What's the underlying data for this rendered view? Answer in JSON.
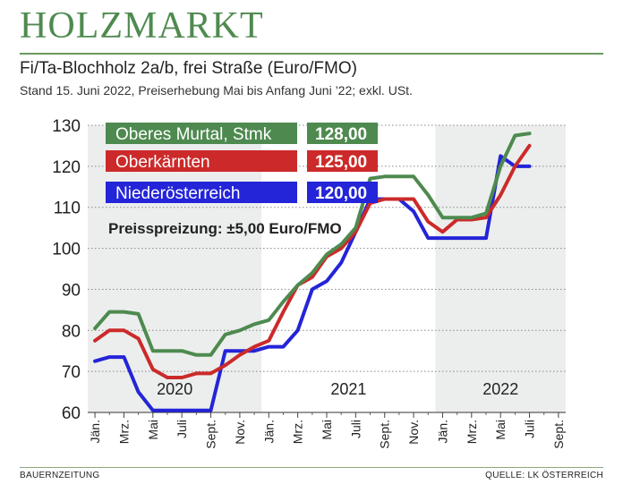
{
  "brand": "HOLZMARKT",
  "chart_data": {
    "type": "line",
    "title": "Fi/Ta-Blochholz 2a/b, frei Straße (Euro/FMO)",
    "subtitle": "Stand 15. Juni 2022, Preiserhebung Mai bis Anfang Juni ’22; exkl. USt.",
    "ylim": [
      60,
      130
    ],
    "yticks": [
      60,
      70,
      80,
      90,
      100,
      110,
      120,
      130
    ],
    "x_ticklabels": [
      "Jän.",
      "Mrz.",
      "Mai",
      "Juli",
      "Sept.",
      "Nov.",
      "Jän.",
      "Mrz.",
      "Mai",
      "Juli",
      "Sept.",
      "Nov.",
      "Jän.",
      "Mrz.",
      "Mai",
      "Juli",
      "Sept."
    ],
    "years": [
      "2020",
      "2021",
      "2022"
    ],
    "shaded_years": [
      "2020",
      "2022"
    ],
    "grid": "horizontal",
    "annotation": "Preisspreizung: ±5,00 Euro/FMO",
    "series": [
      {
        "name": "Oberes Murtal, Stmk",
        "value_label": "128,00",
        "color": "#4e8a4f",
        "points": [
          [
            0,
            80.5
          ],
          [
            1,
            84.5
          ],
          [
            2,
            84.5
          ],
          [
            3,
            84
          ],
          [
            4,
            75
          ],
          [
            5,
            75
          ],
          [
            6,
            75
          ],
          [
            7,
            74
          ],
          [
            8,
            74
          ],
          [
            9,
            79
          ],
          [
            10,
            80
          ],
          [
            11,
            81.5
          ],
          [
            12,
            82.5
          ],
          [
            13,
            87
          ],
          [
            14,
            91
          ],
          [
            15,
            94
          ],
          [
            16,
            98.5
          ],
          [
            17,
            101
          ],
          [
            18,
            105
          ],
          [
            19,
            117
          ],
          [
            20,
            117.5
          ],
          [
            21,
            117.5
          ],
          [
            22,
            117.5
          ],
          [
            23,
            113
          ],
          [
            24,
            107.5
          ],
          [
            25,
            107.5
          ],
          [
            26,
            107.5
          ],
          [
            27,
            108.5
          ],
          [
            28,
            120
          ],
          [
            29,
            127.5
          ],
          [
            30,
            128
          ]
        ]
      },
      {
        "name": "Oberkärnten",
        "value_label": "125,00",
        "color": "#cc2a2a",
        "points": [
          [
            0,
            77.5
          ],
          [
            1,
            80
          ],
          [
            2,
            80
          ],
          [
            3,
            78
          ],
          [
            4,
            70.5
          ],
          [
            5,
            68.5
          ],
          [
            6,
            68.5
          ],
          [
            7,
            69.5
          ],
          [
            8,
            69.5
          ],
          [
            9,
            71.5
          ],
          [
            10,
            74
          ],
          [
            11,
            76
          ],
          [
            12,
            77.5
          ],
          [
            13,
            84.5
          ],
          [
            14,
            91
          ],
          [
            15,
            93
          ],
          [
            16,
            98
          ],
          [
            17,
            100
          ],
          [
            18,
            104
          ],
          [
            19,
            111
          ],
          [
            20,
            112
          ],
          [
            21,
            112
          ],
          [
            22,
            112
          ],
          [
            23,
            106.5
          ],
          [
            24,
            104
          ],
          [
            25,
            107
          ],
          [
            26,
            107
          ],
          [
            27,
            107.5
          ],
          [
            28,
            113
          ],
          [
            29,
            120
          ],
          [
            30,
            125
          ]
        ]
      },
      {
        "name": "Niederösterreich",
        "value_label": "120,00",
        "color": "#2424d8",
        "points": [
          [
            0,
            72.5
          ],
          [
            1,
            73.5
          ],
          [
            2,
            73.5
          ],
          [
            3,
            65
          ],
          [
            4,
            60.5
          ],
          [
            5,
            60.5
          ],
          [
            6,
            60.5
          ],
          [
            7,
            60.5
          ],
          [
            8,
            60.5
          ],
          [
            9,
            75
          ],
          [
            10,
            75
          ],
          [
            11,
            75
          ],
          [
            12,
            76
          ],
          [
            13,
            76
          ],
          [
            14,
            80
          ],
          [
            15,
            90
          ],
          [
            16,
            92
          ],
          [
            17,
            96.5
          ],
          [
            18,
            104
          ],
          [
            19,
            112
          ],
          [
            20,
            112
          ],
          [
            21,
            112
          ],
          [
            22,
            109
          ],
          [
            23,
            102.5
          ],
          [
            24,
            102.5
          ],
          [
            25,
            102.5
          ],
          [
            26,
            102.5
          ],
          [
            27,
            102.5
          ],
          [
            28,
            122.5
          ],
          [
            29,
            120
          ],
          [
            30,
            120
          ]
        ]
      }
    ]
  },
  "footer": {
    "left": "BAUERNZEITUNG",
    "right": "QUELLE: LK ÖSTERREICH"
  }
}
